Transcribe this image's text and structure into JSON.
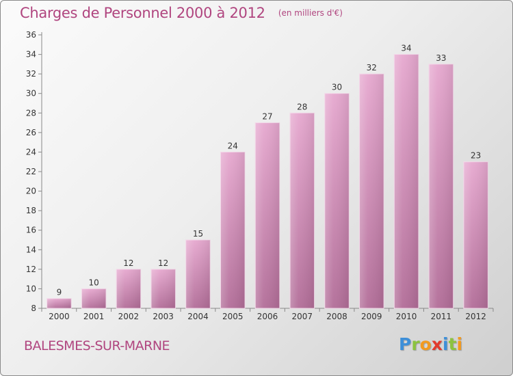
{
  "chart_data": {
    "type": "bar",
    "title": "Charges de Personnel 2000 à 2012",
    "subtitle": "(en milliers d'€)",
    "categories": [
      "2000",
      "2001",
      "2002",
      "2003",
      "2004",
      "2005",
      "2006",
      "2007",
      "2008",
      "2009",
      "2010",
      "2011",
      "2012"
    ],
    "values": [
      9,
      10,
      12,
      12,
      15,
      24,
      27,
      28,
      30,
      32,
      34,
      33,
      23
    ],
    "ylim": [
      8,
      36
    ],
    "yticks": [
      8,
      10,
      12,
      14,
      16,
      18,
      20,
      22,
      24,
      26,
      28,
      30,
      32,
      34,
      36
    ],
    "xlabel": "",
    "ylabel": "",
    "grid": false,
    "data_labels": true,
    "bar_color": "#d38fb9"
  },
  "footer": {
    "commune": "BALESMES-SUR-MARNE",
    "brand": "Proxiti",
    "brand_colors": [
      "#3d8fd9",
      "#8cc33f",
      "#f29a1f",
      "#e23a2e",
      "#3d8fd9",
      "#8cc33f",
      "#f29a1f"
    ]
  }
}
